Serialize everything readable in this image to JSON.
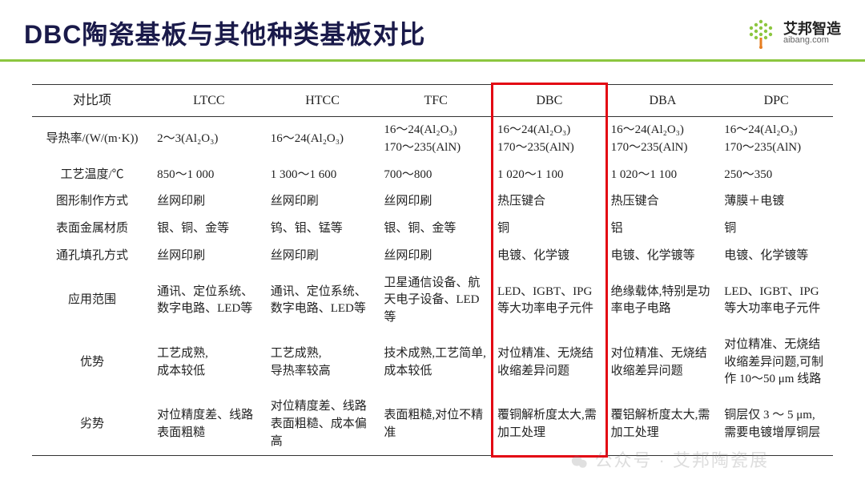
{
  "header": {
    "title": "DBC陶瓷基板与其他种类基板对比",
    "logo_cn": "艾邦智造",
    "logo_en": "aibang.com"
  },
  "table": {
    "columns": [
      "对比项",
      "LTCC",
      "HTCC",
      "TFC",
      "DBC",
      "DBA",
      "DPC"
    ],
    "highlight_col_index": 4,
    "highlight_color": "#e30613",
    "accent_color": "#8cc63f",
    "rows": [
      {
        "label": "导热率/(W/(m·K))",
        "cells": [
          "2～3(Al₂O₃)",
          "16～24(Al₂O₃)",
          "16～24(Al₂O₃)\n170～235(AlN)",
          "16～24(Al₂O₃)\n170～235(AlN)",
          "16～24(Al₂O₃)\n170～235(AlN)",
          "16～24(Al₂O₃)\n170～235(AlN)"
        ]
      },
      {
        "label": "工艺温度/℃",
        "cells": [
          "850～1 000",
          "1 300～1 600",
          "700～800",
          "1 020～1 100",
          "1 020～1 100",
          "250～350"
        ]
      },
      {
        "label": "图形制作方式",
        "cells": [
          "丝网印刷",
          "丝网印刷",
          "丝网印刷",
          "热压键合",
          "热压键合",
          "薄膜＋电镀"
        ]
      },
      {
        "label": "表面金属材质",
        "cells": [
          "银、铜、金等",
          "钨、钼、锰等",
          "银、铜、金等",
          "铜",
          "铝",
          "铜"
        ]
      },
      {
        "label": "通孔填孔方式",
        "cells": [
          "丝网印刷",
          "丝网印刷",
          "丝网印刷",
          "电镀、化学镀",
          "电镀、化学镀等",
          "电镀、化学镀等"
        ]
      },
      {
        "label": "应用范围",
        "cells": [
          "通讯、定位系统、数字电路、LED等",
          "通讯、定位系统、数字电路、LED等",
          "卫星通信设备、航天电子设备、LED 等",
          "LED、IGBT、IPG等大功率电子元件",
          "绝缘载体,特别是功率电子电路",
          "LED、IGBT、IPG等大功率电子元件"
        ]
      },
      {
        "label": "优势",
        "cells": [
          "工艺成熟,\n成本较低",
          "工艺成熟,\n导热率较高",
          "技术成熟,工艺简单,成本较低",
          "对位精准、无烧结收缩差异问题",
          "对位精准、无烧结收缩差异问题",
          "对位精准、无烧结收缩差异问题,可制作 10～50 μm 线路"
        ]
      },
      {
        "label": "劣势",
        "cells": [
          "对位精度差、线路表面粗糙",
          "对位精度差、线路表面粗糙、成本偏高",
          "表面粗糙,对位不精准",
          "覆铜解析度太大,需加工处理",
          "覆铝解析度太大,需加工处理",
          "铜层仅 3 ～ 5 μm, 需要电镀增厚铜层"
        ]
      }
    ]
  },
  "watermark": "公众号 · 艾邦陶瓷展"
}
